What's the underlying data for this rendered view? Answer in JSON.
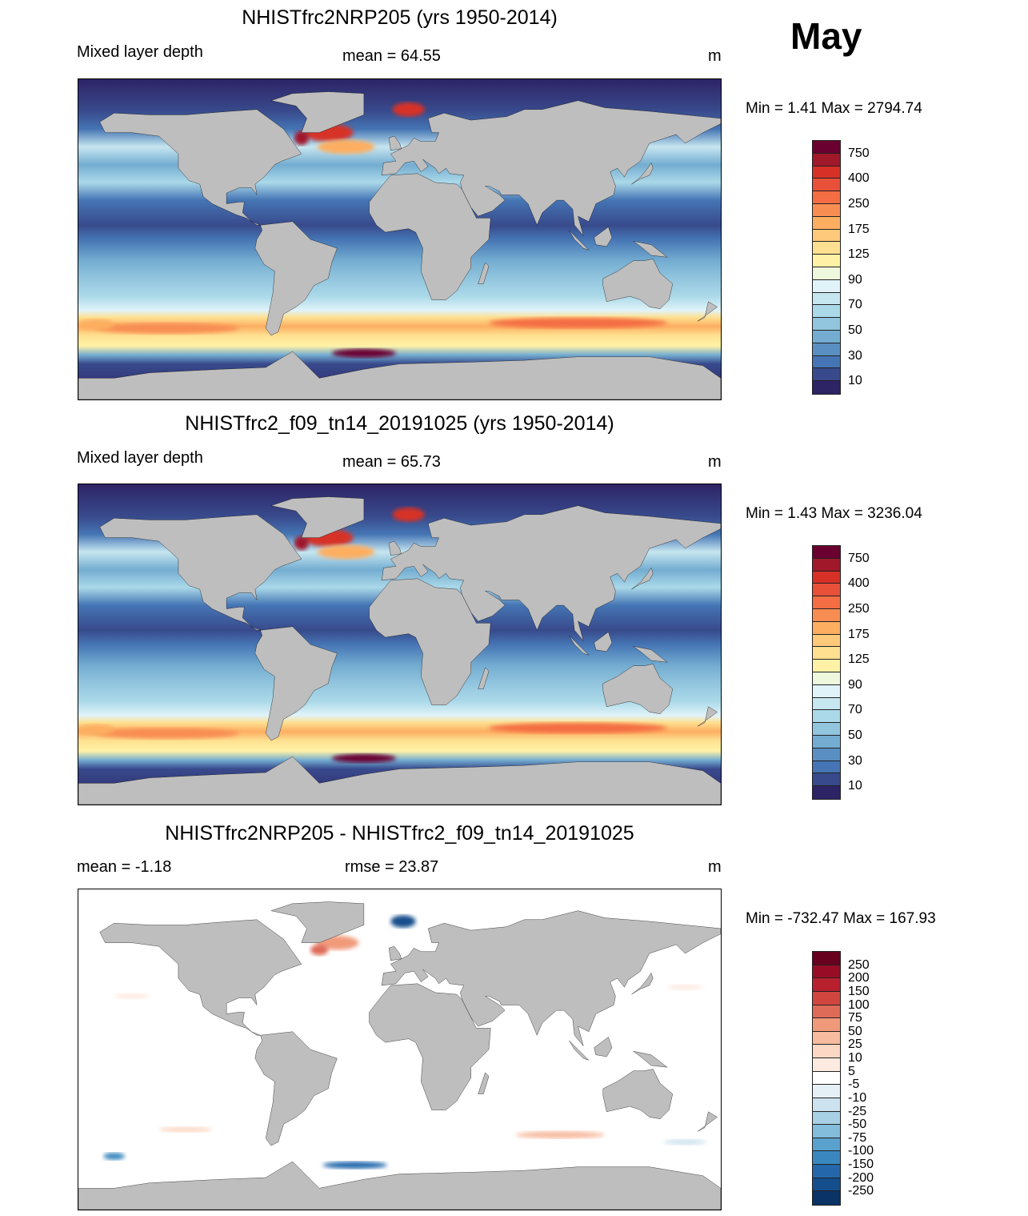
{
  "month": "May",
  "panels": [
    {
      "title": "NHISTfrc2NRP205 (yrs 1950-2014)",
      "left_label": "Mixed layer depth",
      "center_label": "mean =  64.55",
      "units": "m",
      "minmax": "Min =    1.41 Max = 2794.74",
      "kind": "abs"
    },
    {
      "title": "NHISTfrc2_f09_tn14_20191025 (yrs 1950-2014)",
      "left_label": "Mixed layer depth",
      "center_label": "mean =  65.73",
      "units": "m",
      "minmax": "Min =    1.43 Max = 3236.04",
      "kind": "abs"
    },
    {
      "title": "NHISTfrc2NRP205 - NHISTfrc2_f09_tn14_20191025",
      "left_label": "mean =  -1.18",
      "center_label": "rmse =  23.87",
      "units": "m",
      "minmax": "Min = -732.47 Max = 167.93",
      "kind": "diff"
    }
  ],
  "colorbar_abs": {
    "colors_top_to_bottom": [
      "#6a0030",
      "#a0182a",
      "#d73027",
      "#e8503a",
      "#f46d43",
      "#f88d52",
      "#fdae61",
      "#fec97a",
      "#fee090",
      "#fff2a6",
      "#eef8dc",
      "#e0f3f8",
      "#c6e6f0",
      "#abd9e9",
      "#92c5de",
      "#74add1",
      "#5a8fc2",
      "#4575b4",
      "#384a8c",
      "#2d2466"
    ],
    "labels": [
      "750",
      "400",
      "250",
      "175",
      "125",
      "90",
      "70",
      "50",
      "30",
      "10"
    ]
  },
  "colorbar_diff": {
    "colors_top_to_bottom": [
      "#67001f",
      "#980c26",
      "#b8202e",
      "#d0463f",
      "#de6b57",
      "#f09a7a",
      "#f7bba0",
      "#fcd7c3",
      "#fdeae0",
      "#ffffff",
      "#e5eff6",
      "#cce2ee",
      "#a8d0e4",
      "#84bcdb",
      "#5aa2cd",
      "#3a87bf",
      "#2467ab",
      "#144e8c",
      "#0a3366"
    ],
    "labels": [
      "250",
      "200",
      "150",
      "100",
      "75",
      "50",
      "25",
      "10",
      "5",
      "-5",
      "-10",
      "-25",
      "-50",
      "-75",
      "-100",
      "-150",
      "-200",
      "-250"
    ]
  },
  "colors": {
    "land": "#bebebe",
    "coast": "#000000"
  }
}
